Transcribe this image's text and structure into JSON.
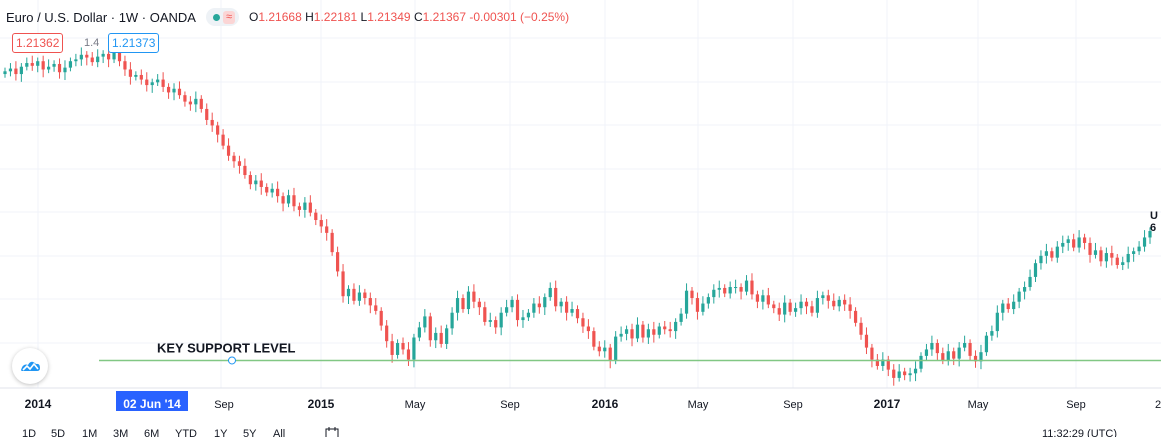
{
  "header": {
    "symbol_title": "Euro / U.S. Dollar · 1W · OANDA",
    "ohlc": {
      "o_label": "O",
      "o_value": "1.21668",
      "h_label": "H",
      "h_value": "1.22181",
      "l_label": "L",
      "l_value": "1.21349",
      "c_label": "C",
      "c_value": "1.21367",
      "change": "-0.00301 (−0.25%)"
    }
  },
  "price_boxes": {
    "bid": "1.21362",
    "mid": "1.4",
    "ask": "1.21373"
  },
  "right_edge": {
    "line1": "U",
    "line2": "6"
  },
  "annotation": {
    "key_support": "KEY SUPPORT LEVEL"
  },
  "time_axis": {
    "labels": [
      "2014",
      "02 Jun '14",
      "Sep",
      "2015",
      "May",
      "Sep",
      "2016",
      "May",
      "Sep",
      "2017",
      "May",
      "Sep",
      "2"
    ],
    "highlighted_index": 1
  },
  "bottom_toolbar": {
    "timeframes": [
      "1D",
      "5D",
      "1M",
      "3M",
      "6M",
      "YTD",
      "1Y",
      "5Y",
      "All"
    ],
    "clock": "11:32:29 (UTC)"
  },
  "icons": {
    "logo": "tradingview-cloud-icon",
    "calendar": "calendar-icon"
  },
  "colors": {
    "up": "#26a69a",
    "down": "#ef5350",
    "support_line": "#81c784",
    "axis_highlight": "#2962ff",
    "grid": "#f0f3fa"
  },
  "chart_data": {
    "type": "candlestick",
    "title": "Euro / U.S. Dollar · 1W · OANDA",
    "x_range": [
      "2014-01",
      "2017-12"
    ],
    "ylim": [
      1.03,
      1.42
    ],
    "grid": true,
    "key_support_level": 1.06,
    "series": [
      {
        "name": "EUR/USD",
        "values": [
          1.375,
          1.378,
          1.372,
          1.38,
          1.384,
          1.381,
          1.386,
          1.377,
          1.38,
          1.383,
          1.374,
          1.379,
          1.386,
          1.388,
          1.393,
          1.39,
          1.385,
          1.391,
          1.394,
          1.388,
          1.395,
          1.386,
          1.377,
          1.369,
          1.371,
          1.366,
          1.36,
          1.363,
          1.366,
          1.358,
          1.352,
          1.356,
          1.349,
          1.342,
          1.339,
          1.345,
          1.334,
          1.322,
          1.316,
          1.306,
          1.294,
          1.283,
          1.277,
          1.272,
          1.262,
          1.252,
          1.256,
          1.249,
          1.243,
          1.247,
          1.239,
          1.231,
          1.24,
          1.228,
          1.224,
          1.232,
          1.221,
          1.213,
          1.206,
          1.199,
          1.178,
          1.157,
          1.13,
          1.138,
          1.125,
          1.134,
          1.128,
          1.12,
          1.114,
          1.098,
          1.081,
          1.066,
          1.079,
          1.072,
          1.061,
          1.085,
          1.096,
          1.108,
          1.082,
          1.09,
          1.078,
          1.095,
          1.112,
          1.128,
          1.116,
          1.135,
          1.124,
          1.118,
          1.102,
          1.104,
          1.096,
          1.112,
          1.118,
          1.126,
          1.104,
          1.107,
          1.112,
          1.122,
          1.118,
          1.129,
          1.139,
          1.119,
          1.124,
          1.112,
          1.116,
          1.106,
          1.097,
          1.092,
          1.075,
          1.07,
          1.074,
          1.06,
          1.086,
          1.089,
          1.094,
          1.084,
          1.099,
          1.085,
          1.094,
          1.088,
          1.097,
          1.094,
          1.092,
          1.102,
          1.111,
          1.136,
          1.128,
          1.113,
          1.122,
          1.129,
          1.137,
          1.139,
          1.133,
          1.14,
          1.14,
          1.135,
          1.147,
          1.132,
          1.124,
          1.131,
          1.121,
          1.117,
          1.11,
          1.123,
          1.113,
          1.117,
          1.124,
          1.119,
          1.112,
          1.128,
          1.131,
          1.125,
          1.119,
          1.126,
          1.121,
          1.114,
          1.101,
          1.088,
          1.074,
          1.061,
          1.054,
          1.061,
          1.05,
          1.041,
          1.048,
          1.044,
          1.046,
          1.051,
          1.065,
          1.072,
          1.079,
          1.068,
          1.06,
          1.07,
          1.062,
          1.074,
          1.079,
          1.065,
          1.059,
          1.069,
          1.087,
          1.092,
          1.112,
          1.122,
          1.116,
          1.124,
          1.135,
          1.14,
          1.151,
          1.166,
          1.174,
          1.179,
          1.172,
          1.184,
          1.188,
          1.192,
          1.183,
          1.194,
          1.188,
          1.175,
          1.18,
          1.168,
          1.177,
          1.172,
          1.164,
          1.167,
          1.176,
          1.179,
          1.184,
          1.194,
          1.201
        ]
      }
    ]
  }
}
